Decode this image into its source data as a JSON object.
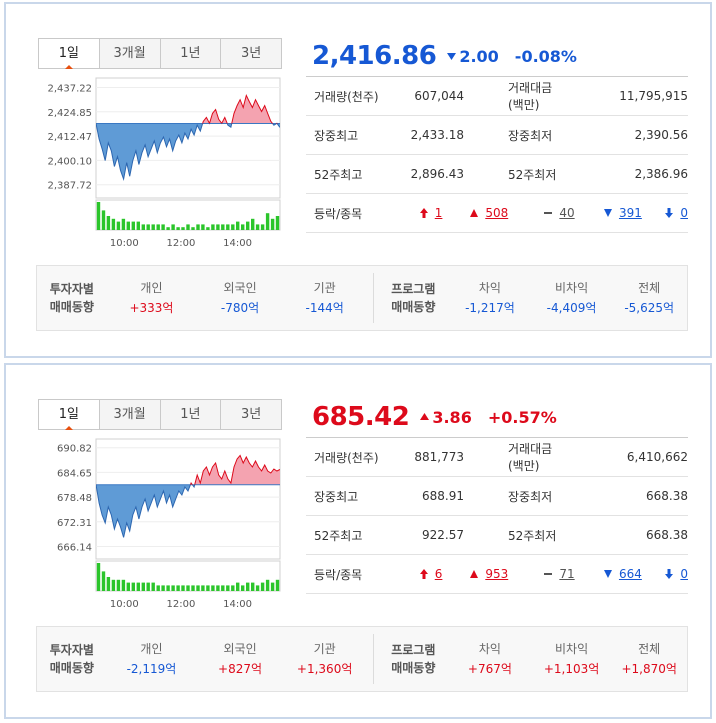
{
  "tabs": [
    "1일",
    "3개월",
    "1년",
    "3년"
  ],
  "stat_labels": {
    "volume": "거래량(천주)",
    "value": "거래대금(백만)",
    "high": "장중최고",
    "low": "장중최저",
    "high52": "52주최고",
    "low52": "52주최저",
    "updown": "등락/종목"
  },
  "investor_labels": {
    "title_1": "투자자별",
    "title_2": "매매동향",
    "individual": "개인",
    "foreign": "외국인",
    "institution": "기관",
    "program_1": "프로그램",
    "program_2": "매매동향",
    "arbitrage": "차익",
    "non_arbitrage": "비차익",
    "total": "전체"
  },
  "colors": {
    "up": "#dd0a1b",
    "down": "#1658d4",
    "up_fill": "#f4a3b0",
    "down_fill": "#5f9bd6",
    "bar": "#2bc52b"
  },
  "panels": [
    {
      "price": "2,416.86",
      "direction": "down",
      "change": "2.00",
      "change_pct": "-0.08%",
      "volume": "607,044",
      "value": "11,795,915",
      "high": "2,433.18",
      "low": "2,390.56",
      "high52": "2,896.43",
      "low52": "2,386.96",
      "counts": {
        "upper_limit": "1",
        "up": "508",
        "flat": "40",
        "down": "391",
        "lower_limit": "0"
      },
      "investors": {
        "individual": "+333억",
        "foreign": "-780억",
        "institution": "-144억",
        "arbitrage": "-1,217억",
        "non_arbitrage": "-4,409억",
        "total": "-5,625억"
      },
      "investor_dirs": [
        "up",
        "down",
        "down",
        "down",
        "down",
        "down"
      ],
      "chart_data": {
        "type": "line",
        "y_ticks": [
          "2,437.22",
          "2,424.85",
          "2,412.47",
          "2,400.10",
          "2,387.72"
        ],
        "x_ticks": [
          "10:00",
          "12:00",
          "14:00"
        ],
        "ylim": [
          2383,
          2440
        ],
        "baseline": 2418.86,
        "points": [
          2418.9,
          2411,
          2406,
          2400,
          2409,
          2405,
          2397,
          2402,
          2395,
          2390.6,
          2399,
          2392,
          2400,
          2405,
          2398,
          2404,
          2408,
          2402,
          2406,
          2410,
          2404,
          2409,
          2412,
          2407,
          2411,
          2405,
          2410,
          2413,
          2409,
          2414,
          2411,
          2416,
          2413,
          2418,
          2415,
          2420,
          2422,
          2419,
          2424,
          2426,
          2421,
          2419,
          2422,
          2418,
          2417,
          2424,
          2428,
          2431,
          2427,
          2433.2,
          2430,
          2427,
          2431,
          2428,
          2425,
          2428,
          2424,
          2420,
          2418,
          2419,
          2416.9
        ],
        "volume": [
          10,
          7,
          5,
          4,
          3,
          4,
          3,
          3,
          3,
          2,
          2,
          2,
          2,
          2,
          1,
          2,
          1,
          1,
          2,
          1,
          2,
          2,
          1,
          2,
          2,
          2,
          2,
          2,
          3,
          2,
          3,
          4,
          2,
          2,
          6,
          4,
          5
        ]
      }
    },
    {
      "price": "685.42",
      "direction": "up",
      "change": "3.86",
      "change_pct": "+0.57%",
      "volume": "881,773",
      "value": "6,410,662",
      "high": "688.91",
      "low": "668.38",
      "high52": "922.57",
      "low52": "668.38",
      "counts": {
        "upper_limit": "6",
        "up": "953",
        "flat": "71",
        "down": "664",
        "lower_limit": "0"
      },
      "investors": {
        "individual": "-2,119억",
        "foreign": "+827억",
        "institution": "+1,360억",
        "arbitrage": "+767억",
        "non_arbitrage": "+1,103억",
        "total": "+1,870억"
      },
      "investor_dirs": [
        "down",
        "up",
        "up",
        "up",
        "up",
        "up"
      ],
      "chart_data": {
        "type": "line",
        "y_ticks": [
          "690.82",
          "684.65",
          "678.48",
          "672.31",
          "666.14"
        ],
        "x_ticks": [
          "10:00",
          "12:00",
          "14:00"
        ],
        "ylim": [
          664,
          692
        ],
        "baseline": 681.56,
        "points": [
          681.6,
          677,
          674,
          672,
          676,
          674,
          670.5,
          673,
          671,
          668.4,
          672,
          670,
          674,
          676,
          673,
          676,
          678,
          675,
          677,
          679,
          676,
          678,
          680,
          677,
          679,
          676,
          678,
          680,
          679,
          681,
          680,
          682,
          681,
          684,
          682,
          685,
          686,
          684,
          686,
          687,
          684,
          683,
          685,
          683,
          682,
          686,
          688,
          688.9,
          687,
          688.5,
          687,
          686,
          687.5,
          686,
          685,
          686.5,
          685,
          684.5,
          685.5,
          685,
          685.4
        ],
        "volume": [
          10,
          7,
          5,
          4,
          4,
          4,
          3,
          3,
          3,
          3,
          3,
          3,
          2,
          2,
          2,
          2,
          2,
          2,
          2,
          2,
          2,
          2,
          2,
          2,
          2,
          2,
          2,
          2,
          3,
          2,
          3,
          3,
          2,
          3,
          4,
          3,
          4
        ]
      }
    }
  ]
}
